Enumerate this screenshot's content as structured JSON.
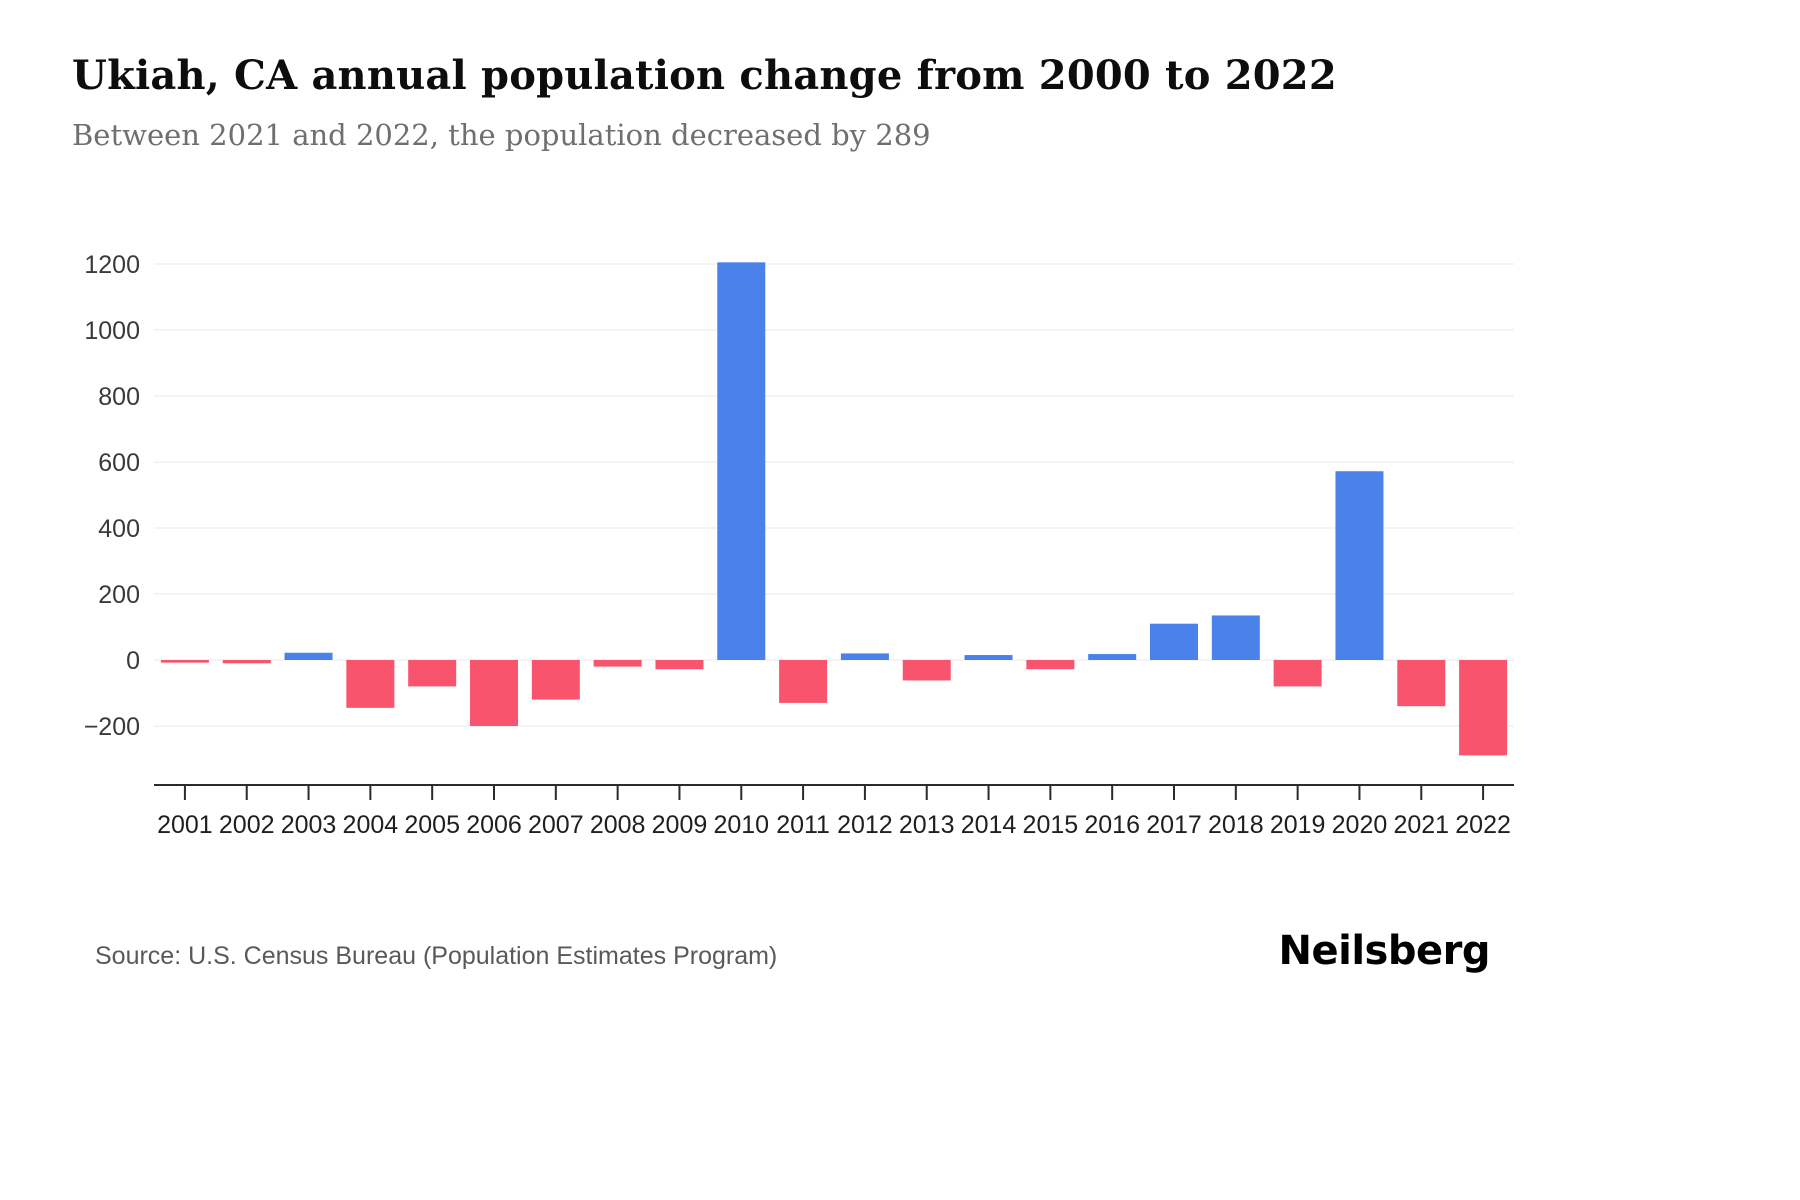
{
  "page": {
    "title": "Ukiah, CA annual population change from 2000 to 2022",
    "subtitle": "Between 2021 and 2022, the population decreased by 289",
    "source": "Source: U.S. Census Bureau (Population Estimates Program)",
    "brand": "Neilsberg"
  },
  "chart_data": {
    "type": "bar",
    "title": "Ukiah, CA annual population change from 2000 to 2022",
    "subtitle": "Between 2021 and 2022, the population decreased by 289",
    "xlabel": "",
    "ylabel": "",
    "categories": [
      "2001",
      "2002",
      "2003",
      "2004",
      "2005",
      "2006",
      "2007",
      "2008",
      "2009",
      "2010",
      "2011",
      "2012",
      "2013",
      "2014",
      "2015",
      "2016",
      "2017",
      "2018",
      "2019",
      "2020",
      "2021",
      "2022"
    ],
    "values": [
      -8,
      -10,
      22,
      -145,
      -80,
      -200,
      -120,
      -20,
      -28,
      1205,
      -130,
      20,
      -62,
      15,
      -28,
      18,
      110,
      135,
      -80,
      572,
      -140,
      -289
    ],
    "yticks": [
      -200,
      0,
      200,
      400,
      600,
      800,
      1000,
      1200
    ],
    "ylim": [
      -380,
      1280
    ],
    "grid": true,
    "legend": "none",
    "positive_color": "#4a82e9",
    "negative_color": "#f8546e",
    "gridline_color": "#e9e9e9",
    "axis_color": "#2b2b2b",
    "tick_label_color": "#3a3a3a"
  }
}
